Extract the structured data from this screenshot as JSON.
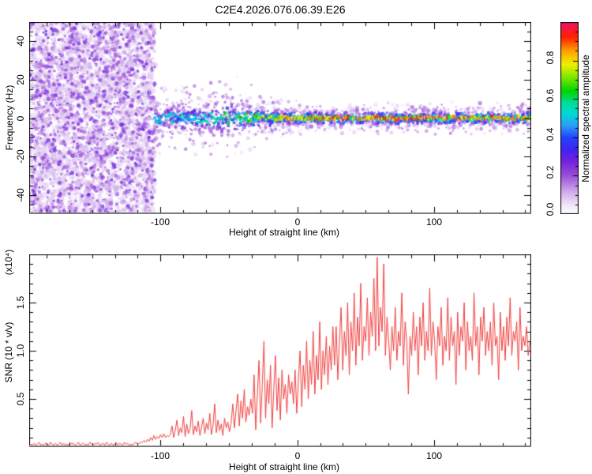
{
  "page": {
    "title": "C2E4.2026.076.06.39.E26"
  },
  "spectrogram": {
    "ylabel": "Frequency (Hz)",
    "xlabel": "Height of straight line (km)",
    "y_tick_labels": [
      "40",
      "20",
      "0",
      "-20",
      "-40"
    ],
    "x_tick_labels": [
      "-100",
      "0",
      "100"
    ]
  },
  "colorbar": {
    "label": "Normalized spectral amplitude",
    "tick_labels": [
      "0.0",
      "0.2",
      "0.4",
      "0.6",
      "0.8"
    ]
  },
  "snr": {
    "ylabel": "SNR (10 * v/v)",
    "multiplier_label": "(x10⁴)",
    "xlabel": "Height of straight line (km)",
    "y_tick_labels": [
      "0.5",
      "1.0",
      "1.5"
    ],
    "x_tick_labels": [
      "-100",
      "0",
      "100"
    ]
  },
  "chart_data": [
    {
      "type": "heatmap",
      "title": "C2E4.2026.076.06.39.E26",
      "xlabel": "Height of straight line (km)",
      "ylabel": "Frequency (Hz)",
      "xlim": [
        -196,
        171
      ],
      "ylim": [
        -50,
        50
      ],
      "x_major_ticks": [
        -100,
        0,
        100
      ],
      "x_minor_step": 16.6667,
      "y_major_ticks": [
        -40,
        -20,
        0,
        20,
        40
      ],
      "y_minor_step": 5,
      "grid": false,
      "colorbar": {
        "label": "Normalized spectral amplitude",
        "ticks": [
          0.0,
          0.2,
          0.4,
          0.6,
          0.8
        ],
        "range": [
          0,
          1
        ]
      },
      "colormap_stops": [
        [
          0.0,
          "#ffffff"
        ],
        [
          0.05,
          "#efe4f8"
        ],
        [
          0.12,
          "#cda6ea"
        ],
        [
          0.2,
          "#9a4fd8"
        ],
        [
          0.27,
          "#7722dd"
        ],
        [
          0.33,
          "#4422ee"
        ],
        [
          0.4,
          "#2244ff"
        ],
        [
          0.46,
          "#2e9cf5"
        ],
        [
          0.52,
          "#00d8d8"
        ],
        [
          0.58,
          "#00dd99"
        ],
        [
          0.64,
          "#00d400"
        ],
        [
          0.72,
          "#8ae800"
        ],
        [
          0.78,
          "#f0f000"
        ],
        [
          0.85,
          "#ffa000"
        ],
        [
          0.92,
          "#ff2200"
        ],
        [
          1.0,
          "#ee1166"
        ]
      ],
      "noise_region": {
        "x_range": [
          -196,
          -104
        ],
        "y_range": [
          -50,
          50
        ],
        "amplitude_range": [
          0.0,
          0.3
        ],
        "note": "dense purple speckle noise filling full frequency range, no coherent signal"
      },
      "signal_band": {
        "center_freq_hz": 0,
        "note": "narrow echo band at 0 Hz; broad and noisy from -104 to -30 km, tight red-cored line from -30 km to right edge",
        "profile": [
          {
            "x": -104,
            "halfwidth_hz": 10.0,
            "peak": 0.55
          },
          {
            "x": -85,
            "halfwidth_hz": 9.0,
            "peak": 0.6
          },
          {
            "x": -65,
            "halfwidth_hz": 11.0,
            "peak": 0.6
          },
          {
            "x": -48,
            "halfwidth_hz": 12.0,
            "peak": 0.65
          },
          {
            "x": -35,
            "halfwidth_hz": 9.0,
            "peak": 0.7
          },
          {
            "x": -25,
            "halfwidth_hz": 6.0,
            "peak": 0.8
          },
          {
            "x": -10,
            "halfwidth_hz": 5.0,
            "peak": 0.88
          },
          {
            "x": 0,
            "halfwidth_hz": 4.5,
            "peak": 0.92
          },
          {
            "x": 30,
            "halfwidth_hz": 4.0,
            "peak": 0.95
          },
          {
            "x": 100,
            "halfwidth_hz": 4.0,
            "peak": 0.95
          },
          {
            "x": 171,
            "halfwidth_hz": 4.0,
            "peak": 0.95
          }
        ]
      }
    },
    {
      "type": "line",
      "series_color": "#f14040",
      "xlabel": "Height of straight line (km)",
      "ylabel": "SNR (10 * v/v)",
      "scale_note": "(x10⁴)",
      "xlim": [
        -196,
        171
      ],
      "ylim": [
        0,
        2
      ],
      "x_major_ticks": [
        -100,
        0,
        100
      ],
      "x_minor_step": 16.6667,
      "y_major_ticks": [
        0.5,
        1.0,
        1.5
      ],
      "y_minor_step": 0.1,
      "grid": false,
      "x_start": -196,
      "x_step": 1.2,
      "values": [
        0.02,
        0.03,
        0.02,
        0.04,
        0.02,
        0.03,
        0.05,
        0.02,
        0.03,
        0.02,
        0.04,
        0.03,
        0.02,
        0.05,
        0.03,
        0.02,
        0.04,
        0.02,
        0.03,
        0.05,
        0.02,
        0.04,
        0.02,
        0.03,
        0.02,
        0.05,
        0.03,
        0.04,
        0.02,
        0.03,
        0.05,
        0.02,
        0.03,
        0.04,
        0.02,
        0.03,
        0.02,
        0.05,
        0.03,
        0.02,
        0.04,
        0.03,
        0.05,
        0.02,
        0.03,
        0.04,
        0.02,
        0.05,
        0.03,
        0.02,
        0.04,
        0.02,
        0.03,
        0.05,
        0.02,
        0.04,
        0.03,
        0.02,
        0.05,
        0.03,
        0.04,
        0.02,
        0.03,
        0.02,
        0.04,
        0.05,
        0.03,
        0.04,
        0.05,
        0.05,
        0.07,
        0.05,
        0.08,
        0.06,
        0.1,
        0.07,
        0.12,
        0.08,
        0.11,
        0.09,
        0.13,
        0.1,
        0.14,
        0.1,
        0.12,
        0.11,
        0.13,
        0.22,
        0.1,
        0.18,
        0.28,
        0.12,
        0.2,
        0.15,
        0.32,
        0.11,
        0.24,
        0.14,
        0.19,
        0.38,
        0.13,
        0.22,
        0.16,
        0.27,
        0.12,
        0.21,
        0.3,
        0.14,
        0.25,
        0.18,
        0.35,
        0.13,
        0.23,
        0.45,
        0.15,
        0.28,
        0.17,
        0.24,
        0.12,
        0.3,
        0.2,
        0.26,
        0.16,
        0.25,
        0.45,
        0.2,
        0.38,
        0.55,
        0.22,
        0.48,
        0.3,
        0.6,
        0.26,
        0.42,
        0.33,
        0.5,
        0.35,
        0.75,
        0.18,
        0.55,
        0.9,
        0.25,
        0.65,
        1.1,
        0.3,
        0.7,
        0.45,
        0.85,
        0.2,
        0.6,
        0.95,
        0.38,
        0.72,
        0.28,
        0.8,
        0.5,
        0.65,
        0.35,
        0.75,
        0.55,
        0.68,
        0.45,
        0.8,
        0.35,
        0.7,
        1.0,
        0.42,
        0.85,
        0.6,
        1.1,
        0.5,
        0.9,
        0.65,
        1.2,
        0.55,
        0.95,
        0.7,
        1.3,
        0.6,
        1.0,
        0.75,
        1.15,
        0.65,
        1.05,
        0.8,
        1.25,
        0.85,
        1.25,
        0.7,
        1.1,
        1.45,
        0.8,
        1.2,
        0.95,
        1.5,
        0.75,
        1.3,
        1.0,
        1.6,
        0.85,
        1.35,
        1.05,
        1.7,
        0.9,
        1.25,
        1.1,
        1.55,
        0.95,
        1.4,
        1.15,
        1.75,
        1.0,
        1.97,
        1.05,
        1.45,
        1.2,
        1.9,
        0.95,
        1.35,
        1.1,
        0.8,
        1.25,
        1.0,
        1.45,
        0.9,
        1.2,
        1.05,
        1.6,
        0.85,
        1.3,
        1.1,
        0.55,
        1.15,
        0.95,
        1.4,
        1.0,
        1.25,
        0.75,
        1.35,
        1.05,
        1.5,
        0.9,
        1.2,
        1.0,
        1.65,
        0.95,
        1.3,
        1.1,
        0.7,
        1.25,
        1.05,
        1.45,
        0.85,
        1.15,
        1.0,
        1.55,
        0.9,
        1.35,
        1.05,
        1.2,
        0.65,
        1.4,
        0.95,
        1.25,
        1.1,
        1.5,
        0.8,
        1.3,
        1.0,
        1.15,
        0.9,
        1.6,
        1.05,
        1.25,
        0.75,
        1.35,
        1.1,
        1.45,
        0.95,
        1.2,
        1.0,
        1.3,
        0.85,
        1.5,
        1.05,
        1.15,
        0.7,
        1.4,
        1.0,
        1.25,
        0.9,
        1.35,
        1.05,
        1.55,
        0.95,
        1.2,
        1.1,
        1.3,
        0.8,
        1.45,
        1.0,
        1.15,
        1.05,
        1.25,
        0.95,
        1.1
      ]
    }
  ]
}
